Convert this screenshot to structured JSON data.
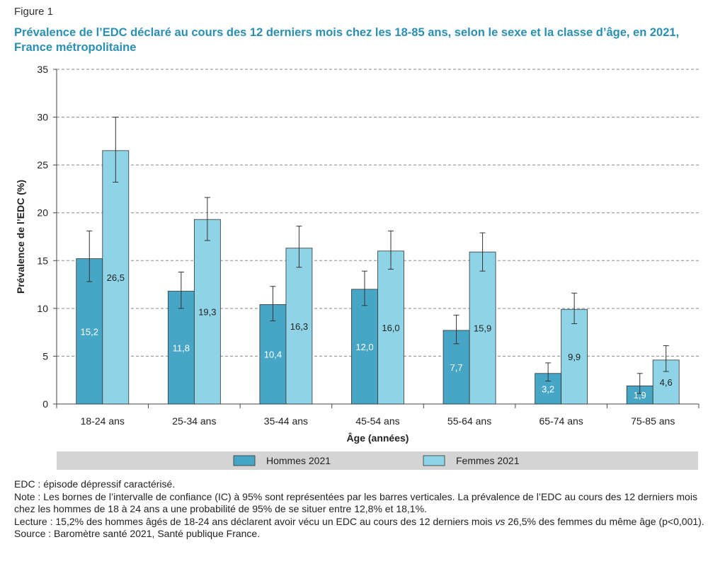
{
  "figure_label": "Figure 1",
  "title": "Prévalence de l’EDC déclaré au cours des 12 derniers mois chez les 18-85 ans, selon le sexe et la classe d’âge, en 2021, France métropolitaine",
  "colors": {
    "hommes": "#47a6c6",
    "femmes": "#8fd3e6",
    "grid": "#888888",
    "legend_bg": "#d4d4d4",
    "title": "#2a8fb3"
  },
  "chart_data": {
    "type": "bar",
    "xlabel": "Âge (années)",
    "ylabel": "Prévalence de l’EDC (%)",
    "ylim": [
      0,
      35
    ],
    "yticks": [
      0,
      5,
      10,
      15,
      20,
      25,
      30,
      35
    ],
    "grid": true,
    "legend_position": "bottom",
    "categories": [
      "18-24 ans",
      "25-34 ans",
      "35-44 ans",
      "45-54 ans",
      "55-64 ans",
      "65-74 ans",
      "75-85 ans"
    ],
    "series": [
      {
        "name": "Hommes 2021",
        "values": [
          15.2,
          11.8,
          10.4,
          12.0,
          7.7,
          3.2,
          1.9
        ],
        "labels": [
          "15,2",
          "11,8",
          "10,4",
          "12,0",
          "7,7",
          "3,2",
          "1,9"
        ],
        "ci_low": [
          12.8,
          10.0,
          8.7,
          10.3,
          6.3,
          2.4,
          1.1
        ],
        "ci_high": [
          18.1,
          13.8,
          12.3,
          13.9,
          9.3,
          4.3,
          3.2
        ]
      },
      {
        "name": "Femmes 2021",
        "values": [
          26.5,
          19.3,
          16.3,
          16.0,
          15.9,
          9.9,
          4.6
        ],
        "labels": [
          "26,5",
          "19,3",
          "16,3",
          "16,0",
          "15,9",
          "9,9",
          "4,6"
        ],
        "ci_low": [
          23.2,
          17.1,
          14.3,
          14.1,
          13.9,
          8.4,
          3.4
        ],
        "ci_high": [
          30.0,
          21.6,
          18.6,
          18.1,
          17.9,
          11.6,
          6.1
        ]
      }
    ]
  },
  "notes": {
    "abbrev": "EDC : épisode dépressif caractérisé.",
    "note": "Note : Les bornes de l’intervalle de confiance (IC) à 95% sont représentées par les barres verticales. La prévalence de l’EDC au cours des 12 derniers mois chez les hommes de 18 à 24 ans a une probabilité de 95% de se situer entre 12,8% et 18,1%.",
    "lecture_before": "Lecture : 15,2% des hommes âgés de 18-24 ans déclarent avoir vécu un EDC au cours des 12 derniers mois ",
    "lecture_vs": "vs",
    "lecture_after": " 26,5% des femmes du même âge (p<0,001).",
    "source": "Source : Baromètre santé 2021, Santé publique France."
  }
}
